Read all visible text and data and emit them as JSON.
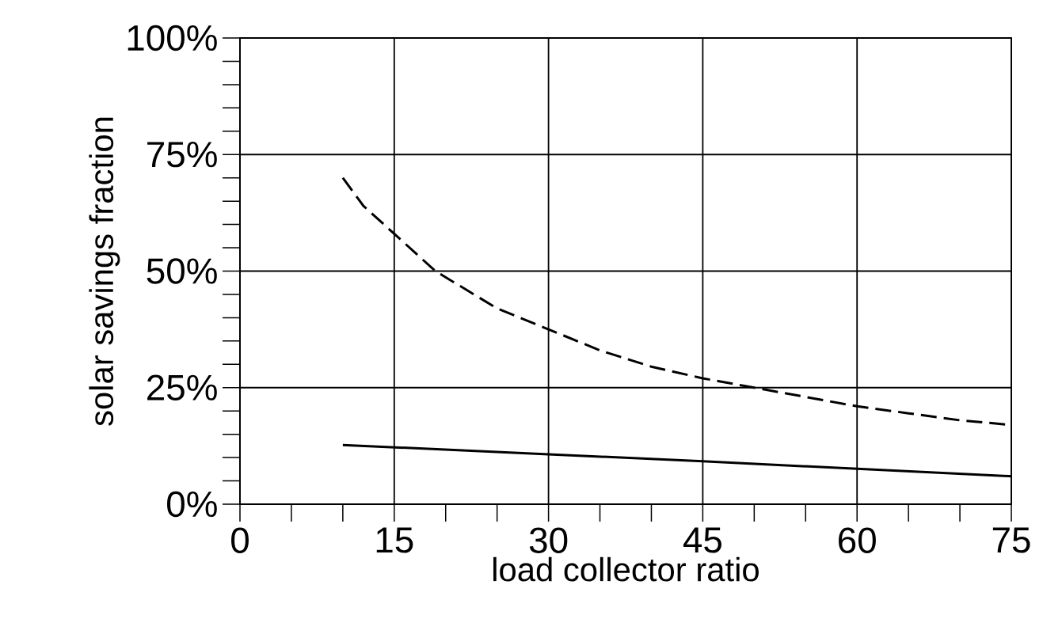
{
  "chart_data": {
    "type": "line",
    "xlabel": "load collector ratio",
    "ylabel": "solar savings fraction",
    "xlim": [
      0,
      75
    ],
    "ylim": [
      0,
      100
    ],
    "xticks": [
      0,
      15,
      30,
      45,
      60,
      75
    ],
    "yticks": [
      {
        "value": 0,
        "label": "0%"
      },
      {
        "value": 25,
        "label": "25%"
      },
      {
        "value": 50,
        "label": "50%"
      },
      {
        "value": 75,
        "label": "75%"
      },
      {
        "value": 100,
        "label": "100%"
      }
    ],
    "grid": true,
    "series": [
      {
        "color": "#000000",
        "line_style": "dashed",
        "x": [
          10,
          12,
          15,
          19,
          22,
          25,
          30,
          35,
          40,
          45,
          50,
          55,
          60,
          65,
          70,
          75
        ],
        "values": [
          70,
          64,
          58,
          50,
          46,
          42,
          37.5,
          33,
          29.5,
          27,
          25,
          23,
          21,
          19.5,
          18,
          17
        ]
      },
      {
        "color": "#000000",
        "line_style": "solid",
        "x": [
          10,
          30,
          45,
          60,
          75
        ],
        "values": [
          12.7,
          10.7,
          9.2,
          7.6,
          6
        ]
      }
    ]
  }
}
